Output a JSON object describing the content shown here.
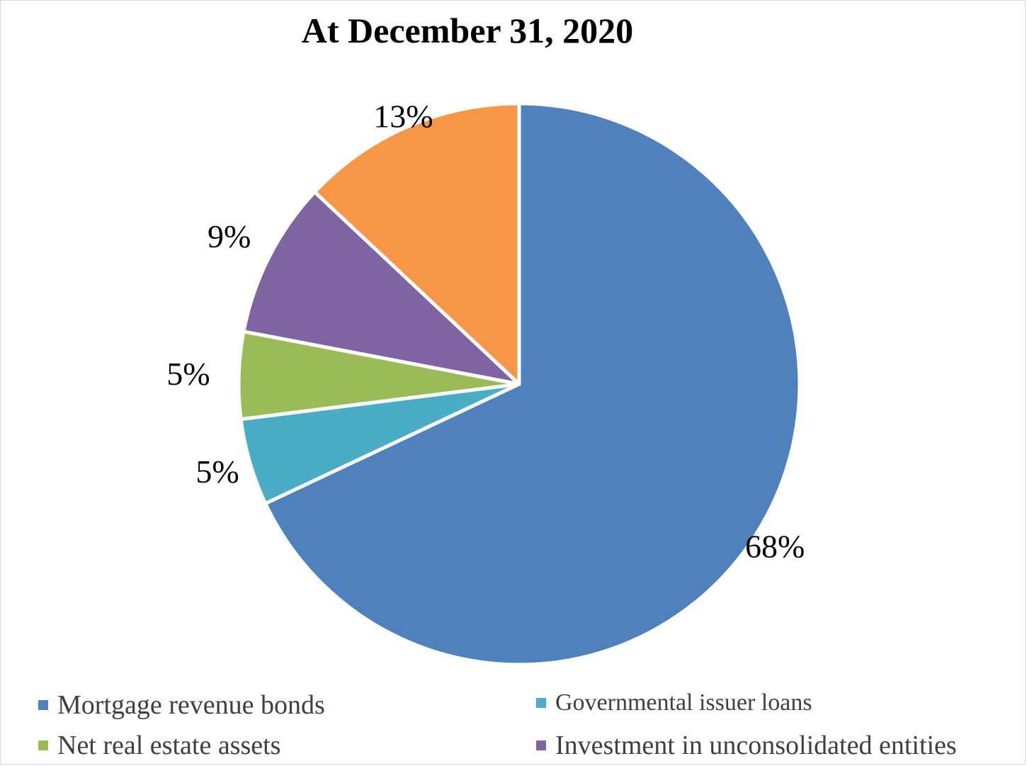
{
  "chart_data": {
    "type": "pie",
    "title": "At December 31, 2020",
    "categories": [
      "Mortgage revenue bonds",
      "Governmental issuer loans",
      "Net real estate assets",
      "Investment in unconsolidated entities",
      ""
    ],
    "values": [
      68,
      5,
      5,
      9,
      13
    ],
    "labels": [
      "68%",
      "5%",
      "5%",
      "9%",
      "13%"
    ],
    "colors": [
      "#4f81bd",
      "#4bacc6",
      "#9bbb59",
      "#8064a2",
      "#f79646"
    ],
    "legend": "bottom",
    "legend_entries": [
      {
        "label": "Mortgage revenue bonds",
        "color": "#4f81bd"
      },
      {
        "label": "Governmental issuer loans",
        "color": "#4bacc6"
      },
      {
        "label": "Net real estate assets",
        "color": "#9bbb59"
      },
      {
        "label": "Investment in unconsolidated entities",
        "color": "#8064a2"
      }
    ]
  }
}
